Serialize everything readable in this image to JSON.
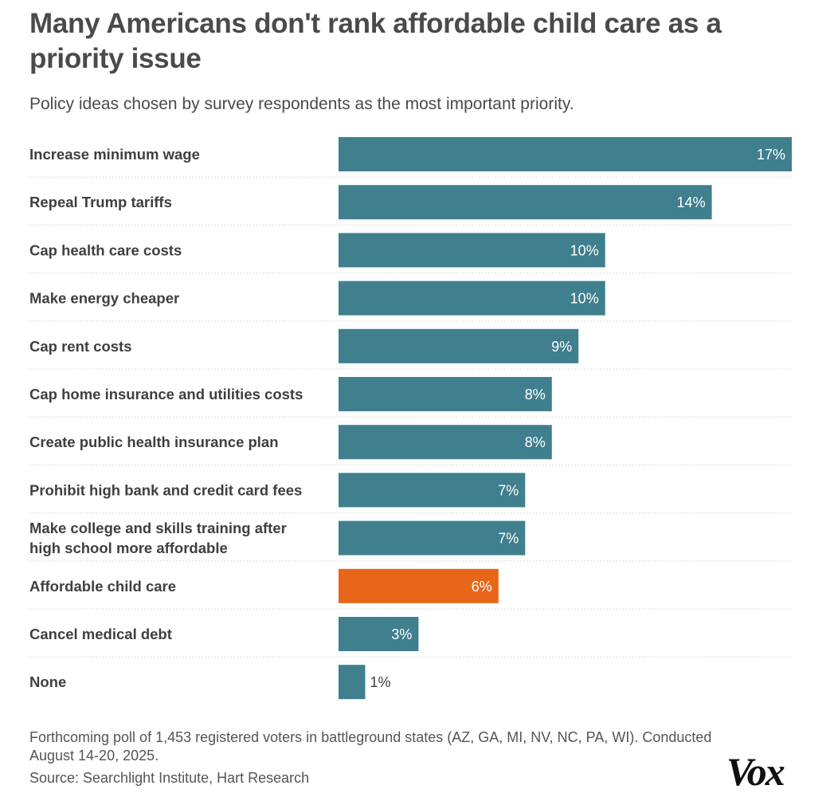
{
  "header": {
    "title": "Many Americans don't rank affordable child care as a priority issue",
    "subtitle": "Policy ideas chosen by survey respondents as the most important priority."
  },
  "footer": {
    "note": "Forthcoming poll of 1,453 registered voters in battleground states (AZ, GA, MI, NV, NC, PA, WI). Conducted August 14-20, 2025.",
    "source": "Source: Searchlight Institute, Hart Research",
    "logo": "Vox"
  },
  "colors": {
    "bar": "#3f7f8e",
    "highlight": "#e8661a",
    "separator": "#dcdcdc"
  },
  "chart_data": {
    "type": "bar",
    "orientation": "horizontal",
    "title": "Many Americans don't rank affordable child care as a priority issue",
    "subtitle": "Policy ideas chosen by survey respondents as the most important priority.",
    "unit": "%",
    "xlim": [
      0,
      17
    ],
    "grid": false,
    "categories": [
      "Increase minimum wage",
      "Repeal Trump tariffs",
      "Cap health care costs",
      "Make energy cheaper",
      "Cap rent costs",
      "Cap home insurance and utilities costs",
      "Create public health insurance plan",
      "Prohibit high bank and credit card fees",
      "Make college and skills training after high school more affordable",
      "Affordable child care",
      "Cancel medical debt",
      "None"
    ],
    "category_lines": [
      [
        "Increase minimum wage"
      ],
      [
        "Repeal Trump tariffs"
      ],
      [
        "Cap health care costs"
      ],
      [
        "Make energy cheaper"
      ],
      [
        "Cap rent costs"
      ],
      [
        "Cap home insurance and utilities costs"
      ],
      [
        "Create public health insurance plan"
      ],
      [
        "Prohibit high bank and credit card fees"
      ],
      [
        "Make college and skills training after",
        "high school more affordable"
      ],
      [
        "Affordable child care"
      ],
      [
        "Cancel medical debt"
      ],
      [
        "None"
      ]
    ],
    "values": [
      17,
      14,
      10,
      10,
      9,
      8,
      8,
      7,
      7,
      6,
      3,
      1
    ],
    "value_labels": [
      "17%",
      "14%",
      "10%",
      "10%",
      "9%",
      "8%",
      "8%",
      "7%",
      "7%",
      "6%",
      "3%",
      "1%"
    ],
    "highlight": "Affordable child care"
  }
}
